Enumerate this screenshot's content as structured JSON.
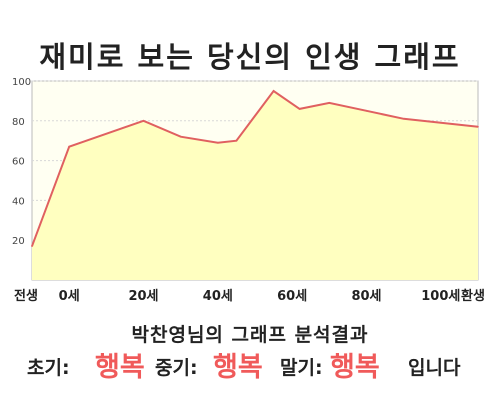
{
  "title": "재미로 보는 당신의 인생 그래프",
  "result": {
    "heading": "박찬영님의 그래프 분석결과",
    "early_label": "초기:",
    "early_value": "행복",
    "mid_label": "중기:",
    "mid_value": "행복",
    "late_label": "말기:",
    "late_value": "행복",
    "suffix": "입니다",
    "highlight_color": "#f05a5a"
  },
  "chart_data": {
    "type": "area",
    "x_tick_labels": [
      "전생",
      "0세",
      "20세",
      "40세",
      "60세",
      "80세",
      "100세",
      "환생"
    ],
    "x": [
      -10,
      0,
      20,
      30,
      40,
      45,
      55,
      62,
      70,
      80,
      90,
      100,
      110
    ],
    "values": [
      17,
      67,
      80,
      72,
      69,
      70,
      95,
      86,
      89,
      85,
      81,
      79,
      77
    ],
    "ylim": [
      0,
      100
    ],
    "yticks": [
      20,
      40,
      60,
      80,
      100
    ],
    "grid": true,
    "line_color": "#e06060",
    "fill_color": "#ffffc0"
  }
}
